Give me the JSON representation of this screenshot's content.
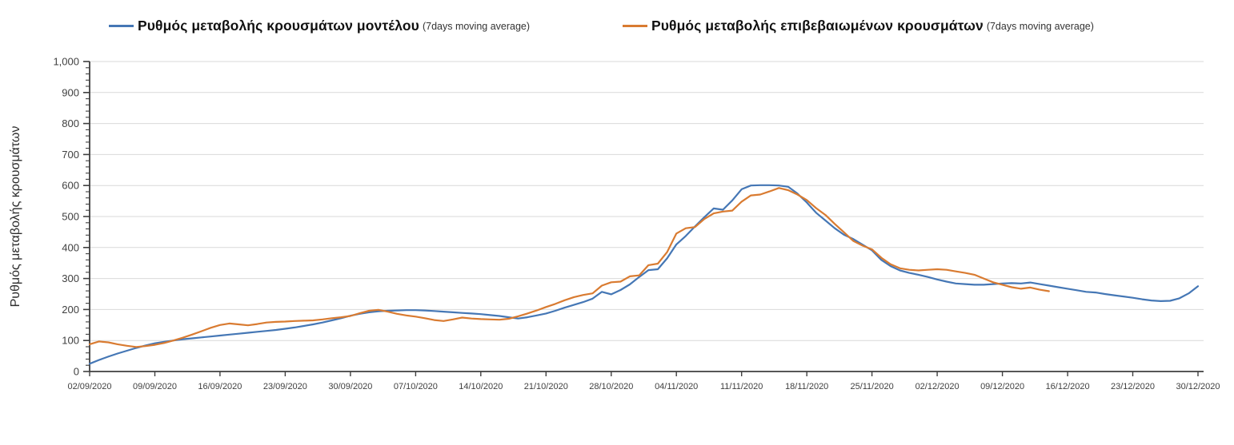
{
  "legend": {
    "items": [
      {
        "label": "Ρυθμός μεταβολής κρουσμάτων μοντέλου",
        "suffix": "(7days moving average)",
        "color": "#4577b5"
      },
      {
        "label": "Ρυθμός μεταβολής επιβεβαιωμένων κρουσμάτων",
        "suffix": "(7days moving average)",
        "color": "#d97b31"
      }
    ]
  },
  "chart_data": {
    "type": "line",
    "title": "",
    "xlabel": "",
    "ylabel": "Ρυθμός μεταβολής κρουσμάτων",
    "ylim": [
      0,
      1000
    ],
    "y_tick_step": 100,
    "y_minor_tick_step": 20,
    "y_tick_labels": [
      "0",
      "100",
      "200",
      "300",
      "400",
      "500",
      "600",
      "700",
      "800",
      "900",
      "1,000"
    ],
    "grid": "horizontal",
    "legend_position": "top",
    "x_interval": "daily",
    "x_start": "02/09/2020",
    "x_tick_every_days": 7,
    "x_tick_labels": [
      "02/09/2020",
      "09/09/2020",
      "16/09/2020",
      "23/09/2020",
      "30/09/2020",
      "07/10/2020",
      "14/10/2020",
      "21/10/2020",
      "28/10/2020",
      "04/11/2020",
      "11/11/2020",
      "18/11/2020",
      "25/11/2020",
      "02/12/2020",
      "09/12/2020",
      "16/12/2020",
      "23/12/2020",
      "30/12/2020"
    ],
    "colors": {
      "grid": "#d9d9d9",
      "axis": "#3f3f3f",
      "tick_text": "#3f3f3f"
    },
    "series": [
      {
        "name": "Ρυθμός μεταβολής κρουσμάτων μοντέλου (7days moving average)",
        "color": "#4577b5",
        "values": [
          25,
          37,
          48,
          58,
          67,
          76,
          84,
          91,
          96,
          100,
          104,
          107,
          110,
          113,
          116,
          119,
          122,
          125,
          128,
          131,
          134,
          138,
          142,
          147,
          152,
          158,
          165,
          172,
          180,
          186,
          191,
          194,
          196,
          197,
          198,
          198,
          197,
          195,
          193,
          191,
          189,
          187,
          185,
          182,
          179,
          175,
          171,
          175,
          181,
          187,
          196,
          206,
          215,
          224,
          235,
          257,
          249,
          263,
          281,
          305,
          327,
          330,
          365,
          410,
          437,
          468,
          498,
          526,
          522,
          552,
          588,
          600,
          601,
          601,
          600,
          596,
          574,
          545,
          512,
          487,
          462,
          441,
          427,
          409,
          391,
          360,
          340,
          326,
          318,
          312,
          305,
          297,
          290,
          284,
          282,
          280,
          280,
          282,
          284,
          285,
          284,
          287,
          282,
          277,
          272,
          267,
          262,
          257,
          255,
          250,
          246,
          242,
          238,
          233,
          229,
          227,
          228,
          236,
          252,
          275
        ]
      },
      {
        "name": "Ρυθμός μεταβολής επιβεβαιωμένων κρουσμάτων (7days moving average)",
        "color": "#d97b31",
        "values": [
          88,
          97,
          94,
          88,
          83,
          79,
          82,
          86,
          92,
          100,
          109,
          119,
          130,
          141,
          150,
          155,
          152,
          149,
          153,
          158,
          160,
          161,
          163,
          164,
          165,
          168,
          172,
          175,
          179,
          188,
          196,
          199,
          193,
          186,
          181,
          177,
          172,
          166,
          163,
          168,
          174,
          171,
          169,
          168,
          167,
          170,
          178,
          187,
          197,
          208,
          218,
          230,
          240,
          247,
          252,
          277,
          288,
          290,
          307,
          310,
          343,
          348,
          385,
          445,
          462,
          466,
          492,
          510,
          516,
          519,
          548,
          568,
          571,
          581,
          592,
          585,
          571,
          553,
          527,
          505,
          476,
          449,
          421,
          406,
          394,
          367,
          346,
          333,
          328,
          326,
          328,
          330,
          328,
          323,
          318,
          312,
          300,
          288,
          280,
          272,
          267,
          271,
          264,
          259,
          null,
          null,
          null,
          null,
          null,
          null,
          null,
          null,
          null,
          null,
          null,
          null,
          null,
          null,
          null,
          null
        ]
      }
    ]
  }
}
